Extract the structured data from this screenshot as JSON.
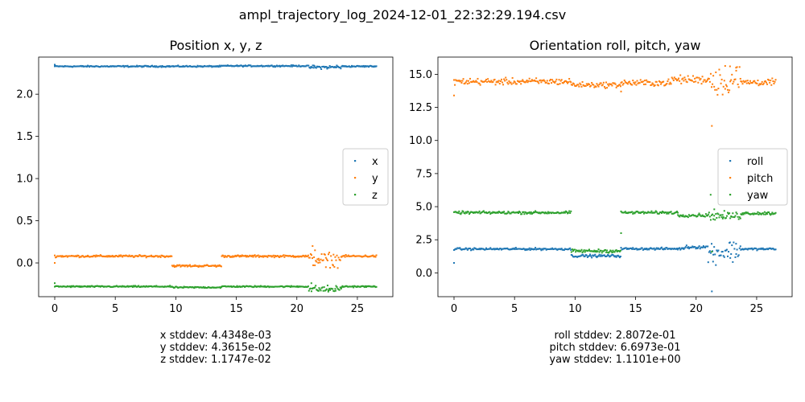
{
  "suptitle": "ampl_trajectory_log_2024-12-01_22:32:29.194.csv",
  "colors": {
    "c0": "#1f77b4",
    "c1": "#ff7f0e",
    "c2": "#2ca02c"
  },
  "chart_data": [
    {
      "type": "scatter",
      "title": "Position x, y, z",
      "xlim": [
        -1.33,
        27.93
      ],
      "ylim": [
        -0.4,
        2.44
      ],
      "xticks": [
        0,
        5,
        10,
        15,
        20,
        25
      ],
      "yticks": [
        0.0,
        0.5,
        1.0,
        1.5,
        2.0
      ],
      "ytick_labels": [
        "0.0",
        "0.5",
        "1.0",
        "1.5",
        "2.0"
      ],
      "legend_location": "center-right",
      "series": [
        {
          "name": "x",
          "color": "#1f77b4",
          "segments": [
            {
              "x0": 0.0,
              "x1": 9.7,
              "y": 2.33,
              "noise": 0.004
            },
            {
              "x0": 9.7,
              "x1": 13.8,
              "y": 2.33,
              "noise": 0.004
            },
            {
              "x0": 13.8,
              "x1": 20.9,
              "y": 2.335,
              "noise": 0.004
            },
            {
              "x0": 20.9,
              "x1": 23.7,
              "y": 2.32,
              "noise": 0.01
            },
            {
              "x0": 23.7,
              "x1": 26.6,
              "y": 2.33,
              "noise": 0.004
            }
          ],
          "outliers": [
            [
              0.0,
              2.35
            ],
            [
              21.4,
              2.34
            ],
            [
              22.5,
              2.31
            ],
            [
              23.3,
              2.34
            ]
          ]
        },
        {
          "name": "y",
          "color": "#ff7f0e",
          "segments": [
            {
              "x0": 0.0,
              "x1": 9.7,
              "y": 0.08,
              "noise": 0.006
            },
            {
              "x0": 9.7,
              "x1": 13.8,
              "y": -0.035,
              "noise": 0.006
            },
            {
              "x0": 13.8,
              "x1": 21.0,
              "y": 0.08,
              "noise": 0.006
            },
            {
              "x0": 21.0,
              "x1": 23.7,
              "y": 0.04,
              "noise": 0.04
            },
            {
              "x0": 23.7,
              "x1": 26.6,
              "y": 0.08,
              "noise": 0.006
            }
          ],
          "outliers": [
            [
              0.0,
              0.0
            ],
            [
              21.3,
              0.2
            ],
            [
              21.5,
              0.15
            ],
            [
              22.4,
              -0.05
            ],
            [
              23.0,
              -0.03
            ],
            [
              21.8,
              0.05
            ]
          ]
        },
        {
          "name": "z",
          "color": "#2ca02c",
          "segments": [
            {
              "x0": 0.0,
              "x1": 9.7,
              "y": -0.28,
              "noise": 0.004
            },
            {
              "x0": 9.7,
              "x1": 13.8,
              "y": -0.29,
              "noise": 0.004
            },
            {
              "x0": 13.8,
              "x1": 21.0,
              "y": -0.28,
              "noise": 0.004
            },
            {
              "x0": 21.0,
              "x1": 23.7,
              "y": -0.31,
              "noise": 0.02
            },
            {
              "x0": 23.7,
              "x1": 26.6,
              "y": -0.28,
              "noise": 0.004
            }
          ],
          "outliers": [
            [
              0.0,
              -0.24
            ],
            [
              21.2,
              -0.24
            ],
            [
              21.8,
              -0.33
            ],
            [
              22.6,
              -0.34
            ],
            [
              23.2,
              -0.33
            ]
          ]
        }
      ]
    },
    {
      "type": "scatter",
      "title": "Orientation roll, pitch, yaw",
      "xlim": [
        -1.33,
        27.93
      ],
      "ylim": [
        -1.8,
        16.3
      ],
      "xticks": [
        0,
        5,
        10,
        15,
        20,
        25
      ],
      "yticks": [
        0.0,
        2.5,
        5.0,
        7.5,
        10.0,
        12.5,
        15.0
      ],
      "ytick_labels": [
        "0.0",
        "2.5",
        "5.0",
        "7.5",
        "10.0",
        "12.5",
        "15.0"
      ],
      "legend_location": "center-right",
      "series": [
        {
          "name": "roll",
          "color": "#1f77b4",
          "segments": [
            {
              "x0": 0.0,
              "x1": 9.7,
              "y": 1.8,
              "noise": 0.04
            },
            {
              "x0": 9.7,
              "x1": 13.8,
              "y": 1.28,
              "noise": 0.05
            },
            {
              "x0": 13.8,
              "x1": 19.0,
              "y": 1.82,
              "noise": 0.04
            },
            {
              "x0": 19.0,
              "x1": 21.0,
              "y": 1.95,
              "noise": 0.06
            },
            {
              "x0": 21.0,
              "x1": 23.7,
              "y": 1.6,
              "noise": 0.4
            },
            {
              "x0": 23.7,
              "x1": 26.6,
              "y": 1.8,
              "noise": 0.04
            }
          ],
          "outliers": [
            [
              0.0,
              0.75
            ],
            [
              21.3,
              -1.4
            ],
            [
              21.4,
              0.85
            ],
            [
              22.8,
              2.3
            ],
            [
              23.3,
              2.2
            ]
          ]
        },
        {
          "name": "pitch",
          "color": "#ff7f0e",
          "segments": [
            {
              "x0": 0.0,
              "x1": 9.7,
              "y": 14.45,
              "noise": 0.12
            },
            {
              "x0": 9.7,
              "x1": 13.8,
              "y": 14.2,
              "noise": 0.1
            },
            {
              "x0": 13.8,
              "x1": 18.0,
              "y": 14.35,
              "noise": 0.12
            },
            {
              "x0": 18.0,
              "x1": 21.0,
              "y": 14.6,
              "noise": 0.15
            },
            {
              "x0": 21.0,
              "x1": 23.7,
              "y": 14.6,
              "noise": 0.6
            },
            {
              "x0": 23.7,
              "x1": 26.6,
              "y": 14.4,
              "noise": 0.12
            }
          ],
          "outliers": [
            [
              0.0,
              13.4
            ],
            [
              13.8,
              13.7
            ],
            [
              21.3,
              11.1
            ],
            [
              22.4,
              13.9
            ],
            [
              22.8,
              15.6
            ],
            [
              23.3,
              15.5
            ]
          ]
        },
        {
          "name": "yaw",
          "color": "#2ca02c",
          "segments": [
            {
              "x0": 0.0,
              "x1": 9.7,
              "y": 4.55,
              "noise": 0.05
            },
            {
              "x0": 9.7,
              "x1": 13.8,
              "y": 1.65,
              "noise": 0.06
            },
            {
              "x0": 13.8,
              "x1": 18.5,
              "y": 4.55,
              "noise": 0.05
            },
            {
              "x0": 18.5,
              "x1": 21.0,
              "y": 4.35,
              "noise": 0.06
            },
            {
              "x0": 21.0,
              "x1": 23.7,
              "y": 4.3,
              "noise": 0.15
            },
            {
              "x0": 23.7,
              "x1": 26.6,
              "y": 4.5,
              "noise": 0.06
            }
          ],
          "outliers": [
            [
              13.8,
              3.0
            ],
            [
              21.2,
              5.9
            ],
            [
              21.3,
              1.6
            ],
            [
              21.5,
              4.8
            ],
            [
              22.2,
              4.1
            ]
          ]
        }
      ]
    }
  ],
  "stats": [
    {
      "lines": [
        "x stddev: 4.4348e-03",
        "y stddev: 4.3615e-02",
        "z stddev: 1.1747e-02"
      ]
    },
    {
      "lines": [
        "roll stddev: 2.8072e-01",
        "pitch stddev: 6.6973e-01",
        "yaw stddev: 1.1101e+00"
      ]
    }
  ]
}
